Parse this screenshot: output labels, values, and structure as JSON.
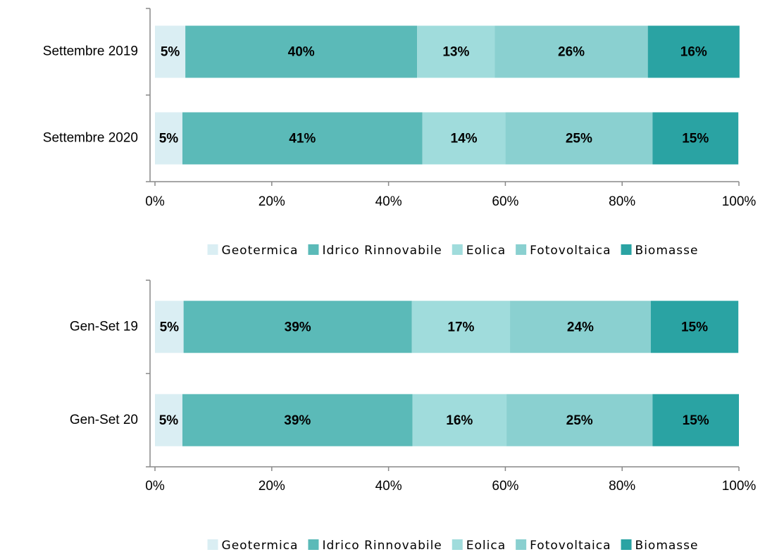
{
  "chart_data": [
    {
      "type": "bar",
      "orientation": "horizontal",
      "stacked": true,
      "categories": [
        "Settembre 2019",
        "Settembre 2020"
      ],
      "series": [
        {
          "name": "Geotermica",
          "color": "#daeef3",
          "values": [
            5.2,
            4.7
          ],
          "value_labels": [
            "5%",
            "5%"
          ]
        },
        {
          "name": "Idrico Rinnovabile",
          "color": "#5bbab8",
          "values": [
            39.7,
            41.1
          ],
          "value_labels": [
            "40%",
            "41%"
          ]
        },
        {
          "name": "Eolica",
          "color": "#a0dcdc",
          "values": [
            13.3,
            14.2
          ],
          "value_labels": [
            "13%",
            "14%"
          ]
        },
        {
          "name": "Fotovoltaica",
          "color": "#8ad0d0",
          "values": [
            26.2,
            25.2
          ],
          "value_labels": [
            "26%",
            "25%"
          ]
        },
        {
          "name": "Biomasse",
          "color": "#2aa3a3",
          "values": [
            15.7,
            14.7
          ],
          "value_labels": [
            "16%",
            "15%"
          ]
        }
      ],
      "xlim": [
        0,
        100
      ],
      "xticks": [
        {
          "value": 0,
          "label": "0%"
        },
        {
          "value": 20,
          "label": "20%"
        },
        {
          "value": 40,
          "label": "40%"
        },
        {
          "value": 60,
          "label": "60%"
        },
        {
          "value": 80,
          "label": "80%"
        },
        {
          "value": 100,
          "label": "100%"
        }
      ],
      "legend": "bottom"
    },
    {
      "type": "bar",
      "orientation": "horizontal",
      "stacked": true,
      "categories": [
        "Gen-Set 19",
        "Gen-Set 20"
      ],
      "series": [
        {
          "name": "Geotermica",
          "color": "#daeef3",
          "values": [
            4.9,
            4.7
          ],
          "value_labels": [
            "5%",
            "5%"
          ]
        },
        {
          "name": "Idrico Rinnovabile",
          "color": "#5bbab8",
          "values": [
            39.1,
            39.4
          ],
          "value_labels": [
            "39%",
            "39%"
          ]
        },
        {
          "name": "Eolica",
          "color": "#a0dcdc",
          "values": [
            16.8,
            16.1
          ],
          "value_labels": [
            "17%",
            "16%"
          ]
        },
        {
          "name": "Fotovoltaica",
          "color": "#8ad0d0",
          "values": [
            24.1,
            25.0
          ],
          "value_labels": [
            "24%",
            "25%"
          ]
        },
        {
          "name": "Biomasse",
          "color": "#2aa3a3",
          "values": [
            15.0,
            14.8
          ],
          "value_labels": [
            "15%",
            "15%"
          ]
        }
      ],
      "xlim": [
        0,
        100
      ],
      "xticks": [
        {
          "value": 0,
          "label": "0%"
        },
        {
          "value": 20,
          "label": "20%"
        },
        {
          "value": 40,
          "label": "40%"
        },
        {
          "value": 60,
          "label": "60%"
        },
        {
          "value": 80,
          "label": "80%"
        },
        {
          "value": 100,
          "label": "100%"
        }
      ],
      "legend": "bottom"
    }
  ]
}
